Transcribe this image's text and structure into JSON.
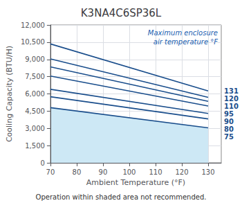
{
  "chart_data": {
    "type": "line",
    "title": "K3NA4C6SP36L",
    "xlabel": "Ambient Temperature (°F)",
    "ylabel": "Cooling Capacity (BTU/H)",
    "annotation": "Maximum enclosure\nair temperature °F",
    "footnote": "Operation within shaded area not recommended.",
    "xlim": [
      70,
      135
    ],
    "ylim": [
      0,
      12000
    ],
    "xticks": [
      70,
      80,
      90,
      100,
      110,
      120,
      130
    ],
    "yticks": [
      0,
      1500,
      3000,
      4500,
      6000,
      7500,
      9000,
      10500,
      12000
    ],
    "grid": true,
    "color": "#1a4e8c",
    "series": [
      {
        "type": "area",
        "color": "#cde8f5",
        "x": [
          70,
          130
        ],
        "values": [
          4800,
          3050
        ]
      },
      {
        "name": "131",
        "x": [
          70,
          130
        ],
        "values": [
          10350,
          6250
        ]
      },
      {
        "name": "120",
        "x": [
          70,
          130
        ],
        "values": [
          9050,
          5700
        ]
      },
      {
        "name": "110",
        "x": [
          70,
          130
        ],
        "values": [
          8350,
          5350
        ]
      },
      {
        "name": "95",
        "x": [
          70,
          130
        ],
        "values": [
          7550,
          4950
        ]
      },
      {
        "name": "90",
        "x": [
          70,
          130
        ],
        "values": [
          6400,
          4300
        ]
      },
      {
        "name": "80",
        "x": [
          70,
          130
        ],
        "values": [
          5750,
          3820
        ]
      },
      {
        "name": "75",
        "x": [
          70,
          130
        ],
        "values": [
          4800,
          3050
        ]
      }
    ]
  }
}
